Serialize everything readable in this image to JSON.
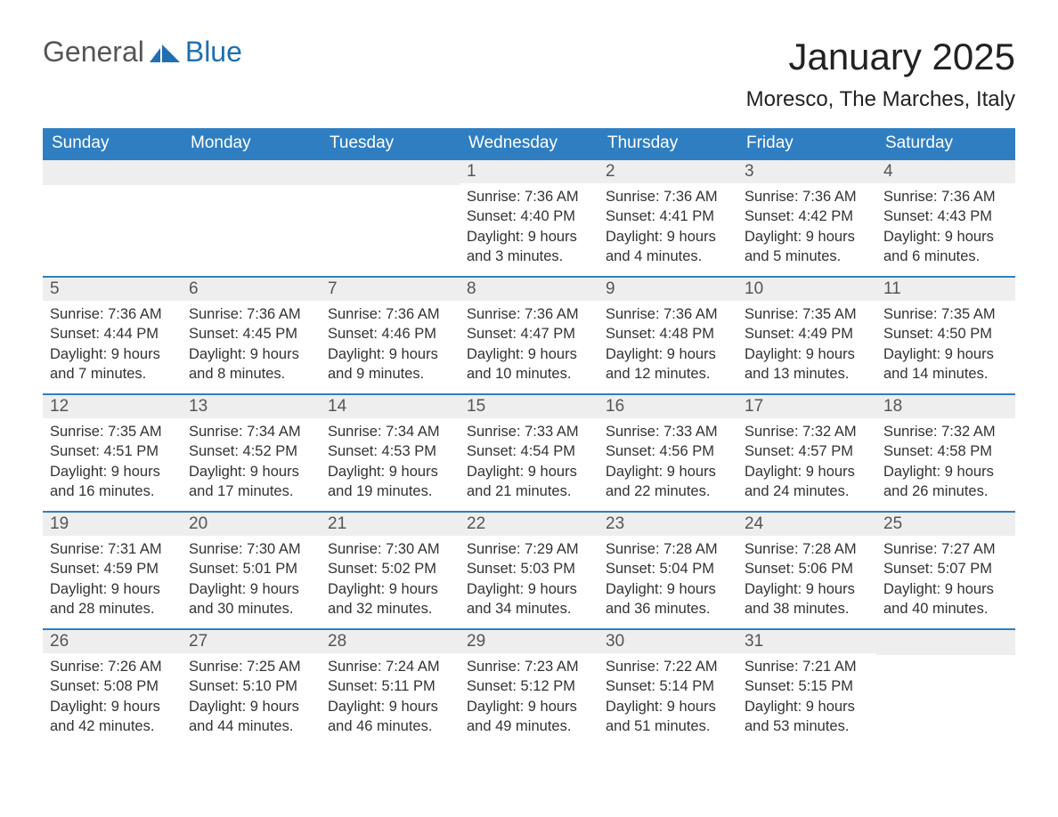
{
  "brand": {
    "part1": "General",
    "part2": "Blue",
    "accent_color": "#1f6fb2"
  },
  "title": "January 2025",
  "location": "Moresco, The Marches, Italy",
  "colors": {
    "header_bg": "#2f7ec2",
    "header_text": "#ffffff",
    "row_divider": "#2f7ec2",
    "daybar_bg": "#eeeeee",
    "daybar_text": "#555555",
    "body_text": "#333333",
    "page_bg": "#ffffff"
  },
  "weekdays": [
    "Sunday",
    "Monday",
    "Tuesday",
    "Wednesday",
    "Thursday",
    "Friday",
    "Saturday"
  ],
  "weeks": [
    [
      null,
      null,
      null,
      {
        "n": "1",
        "sunrise": "7:36 AM",
        "sunset": "4:40 PM",
        "daylight": "9 hours and 3 minutes."
      },
      {
        "n": "2",
        "sunrise": "7:36 AM",
        "sunset": "4:41 PM",
        "daylight": "9 hours and 4 minutes."
      },
      {
        "n": "3",
        "sunrise": "7:36 AM",
        "sunset": "4:42 PM",
        "daylight": "9 hours and 5 minutes."
      },
      {
        "n": "4",
        "sunrise": "7:36 AM",
        "sunset": "4:43 PM",
        "daylight": "9 hours and 6 minutes."
      }
    ],
    [
      {
        "n": "5",
        "sunrise": "7:36 AM",
        "sunset": "4:44 PM",
        "daylight": "9 hours and 7 minutes."
      },
      {
        "n": "6",
        "sunrise": "7:36 AM",
        "sunset": "4:45 PM",
        "daylight": "9 hours and 8 minutes."
      },
      {
        "n": "7",
        "sunrise": "7:36 AM",
        "sunset": "4:46 PM",
        "daylight": "9 hours and 9 minutes."
      },
      {
        "n": "8",
        "sunrise": "7:36 AM",
        "sunset": "4:47 PM",
        "daylight": "9 hours and 10 minutes."
      },
      {
        "n": "9",
        "sunrise": "7:36 AM",
        "sunset": "4:48 PM",
        "daylight": "9 hours and 12 minutes."
      },
      {
        "n": "10",
        "sunrise": "7:35 AM",
        "sunset": "4:49 PM",
        "daylight": "9 hours and 13 minutes."
      },
      {
        "n": "11",
        "sunrise": "7:35 AM",
        "sunset": "4:50 PM",
        "daylight": "9 hours and 14 minutes."
      }
    ],
    [
      {
        "n": "12",
        "sunrise": "7:35 AM",
        "sunset": "4:51 PM",
        "daylight": "9 hours and 16 minutes."
      },
      {
        "n": "13",
        "sunrise": "7:34 AM",
        "sunset": "4:52 PM",
        "daylight": "9 hours and 17 minutes."
      },
      {
        "n": "14",
        "sunrise": "7:34 AM",
        "sunset": "4:53 PM",
        "daylight": "9 hours and 19 minutes."
      },
      {
        "n": "15",
        "sunrise": "7:33 AM",
        "sunset": "4:54 PM",
        "daylight": "9 hours and 21 minutes."
      },
      {
        "n": "16",
        "sunrise": "7:33 AM",
        "sunset": "4:56 PM",
        "daylight": "9 hours and 22 minutes."
      },
      {
        "n": "17",
        "sunrise": "7:32 AM",
        "sunset": "4:57 PM",
        "daylight": "9 hours and 24 minutes."
      },
      {
        "n": "18",
        "sunrise": "7:32 AM",
        "sunset": "4:58 PM",
        "daylight": "9 hours and 26 minutes."
      }
    ],
    [
      {
        "n": "19",
        "sunrise": "7:31 AM",
        "sunset": "4:59 PM",
        "daylight": "9 hours and 28 minutes."
      },
      {
        "n": "20",
        "sunrise": "7:30 AM",
        "sunset": "5:01 PM",
        "daylight": "9 hours and 30 minutes."
      },
      {
        "n": "21",
        "sunrise": "7:30 AM",
        "sunset": "5:02 PM",
        "daylight": "9 hours and 32 minutes."
      },
      {
        "n": "22",
        "sunrise": "7:29 AM",
        "sunset": "5:03 PM",
        "daylight": "9 hours and 34 minutes."
      },
      {
        "n": "23",
        "sunrise": "7:28 AM",
        "sunset": "5:04 PM",
        "daylight": "9 hours and 36 minutes."
      },
      {
        "n": "24",
        "sunrise": "7:28 AM",
        "sunset": "5:06 PM",
        "daylight": "9 hours and 38 minutes."
      },
      {
        "n": "25",
        "sunrise": "7:27 AM",
        "sunset": "5:07 PM",
        "daylight": "9 hours and 40 minutes."
      }
    ],
    [
      {
        "n": "26",
        "sunrise": "7:26 AM",
        "sunset": "5:08 PM",
        "daylight": "9 hours and 42 minutes."
      },
      {
        "n": "27",
        "sunrise": "7:25 AM",
        "sunset": "5:10 PM",
        "daylight": "9 hours and 44 minutes."
      },
      {
        "n": "28",
        "sunrise": "7:24 AM",
        "sunset": "5:11 PM",
        "daylight": "9 hours and 46 minutes."
      },
      {
        "n": "29",
        "sunrise": "7:23 AM",
        "sunset": "5:12 PM",
        "daylight": "9 hours and 49 minutes."
      },
      {
        "n": "30",
        "sunrise": "7:22 AM",
        "sunset": "5:14 PM",
        "daylight": "9 hours and 51 minutes."
      },
      {
        "n": "31",
        "sunrise": "7:21 AM",
        "sunset": "5:15 PM",
        "daylight": "9 hours and 53 minutes."
      },
      null
    ]
  ],
  "labels": {
    "sunrise": "Sunrise:",
    "sunset": "Sunset:",
    "daylight": "Daylight:"
  }
}
